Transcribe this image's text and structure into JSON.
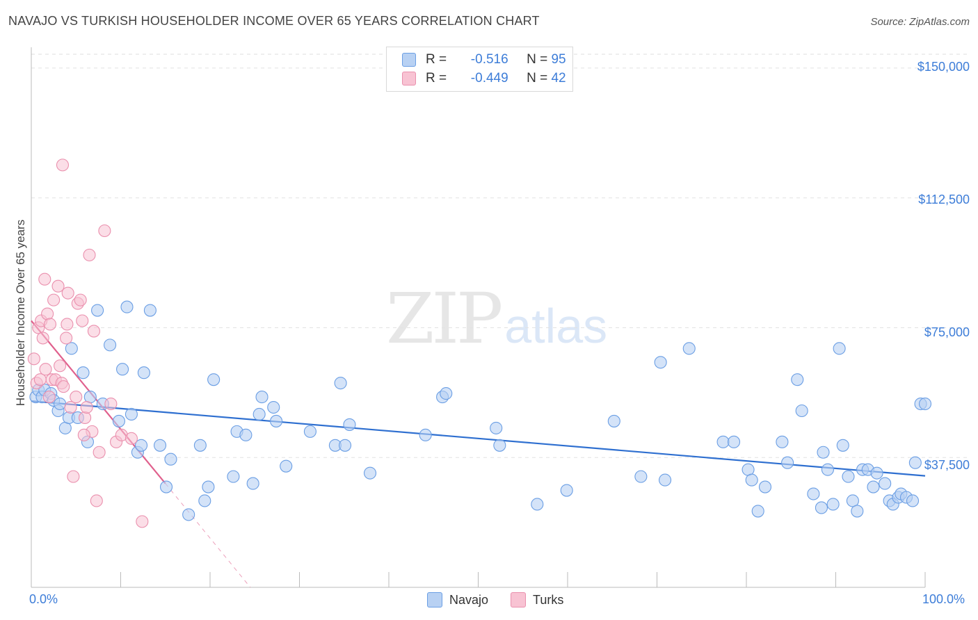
{
  "title": "NAVAJO VS TURKISH HOUSEHOLDER INCOME OVER 65 YEARS CORRELATION CHART",
  "source": "Source: ZipAtlas.com",
  "watermark": {
    "zip": "ZIP",
    "atlas": "atlas"
  },
  "legend": {
    "rows": [
      {
        "r_label": "R =",
        "r_value": "-0.516",
        "n_label": "N =",
        "n_value": "95",
        "color": "#b8d1f3"
      },
      {
        "r_label": "R =",
        "r_value": "-0.449",
        "n_label": "N =",
        "n_value": "42",
        "color": "#f8c3d3"
      }
    ]
  },
  "bottom_legend": {
    "navajo": "Navajo",
    "turks": "Turks"
  },
  "chart_data": {
    "type": "scatter",
    "title": "NAVAJO VS TURKISH HOUSEHOLDER INCOME OVER 65 YEARS CORRELATION CHART",
    "xlabel": "",
    "ylabel": "Householder Income Over 65 years",
    "x_tick_labels": [
      "0.0%",
      "100.0%"
    ],
    "y_tick_labels": [
      "$150,000",
      "$112,500",
      "$75,000",
      "$37,500"
    ],
    "y_ticks": [
      150000,
      112500,
      75000,
      37500
    ],
    "xlim": [
      0,
      100
    ],
    "ylim": [
      0,
      154000
    ],
    "grid": true,
    "colors": {
      "navajo_fill": "#b8d1f3",
      "navajo_stroke": "#6a9ee4",
      "navajo_line": "#2e6fd0",
      "turks_fill": "#f8c3d3",
      "turks_stroke": "#ea8fad",
      "turks_line": "#e0608d"
    },
    "series": [
      {
        "name": "Navajo",
        "points": [
          [
            0.5,
            55
          ],
          [
            0.8,
            57
          ],
          [
            1.2,
            55
          ],
          [
            1.5,
            57
          ],
          [
            2.2,
            56
          ],
          [
            2.5,
            54
          ],
          [
            3.0,
            51
          ],
          [
            3.2,
            53
          ],
          [
            3.8,
            46
          ],
          [
            4.2,
            49
          ],
          [
            4.5,
            69
          ],
          [
            5.2,
            49
          ],
          [
            5.8,
            62
          ],
          [
            6.3,
            42
          ],
          [
            6.6,
            55
          ],
          [
            7.4,
            80
          ],
          [
            8.0,
            53
          ],
          [
            8.8,
            70
          ],
          [
            9.8,
            48
          ],
          [
            10.2,
            63
          ],
          [
            10.7,
            81
          ],
          [
            11.2,
            50
          ],
          [
            11.9,
            39
          ],
          [
            12.3,
            41
          ],
          [
            12.6,
            62
          ],
          [
            13.3,
            80
          ],
          [
            14.4,
            41
          ],
          [
            15.1,
            29
          ],
          [
            15.6,
            37
          ],
          [
            17.6,
            21
          ],
          [
            18.9,
            41
          ],
          [
            19.4,
            25
          ],
          [
            19.8,
            29
          ],
          [
            20.4,
            60
          ],
          [
            22.6,
            32
          ],
          [
            23.0,
            45
          ],
          [
            24.0,
            44
          ],
          [
            24.8,
            30
          ],
          [
            25.5,
            50
          ],
          [
            25.8,
            55
          ],
          [
            27.1,
            52
          ],
          [
            27.4,
            48
          ],
          [
            28.5,
            35
          ],
          [
            31.2,
            45
          ],
          [
            34.0,
            41
          ],
          [
            34.6,
            59
          ],
          [
            35.1,
            41
          ],
          [
            35.6,
            47
          ],
          [
            37.9,
            33
          ],
          [
            44.1,
            44
          ],
          [
            46.0,
            55
          ],
          [
            46.4,
            56
          ],
          [
            52.0,
            46
          ],
          [
            52.4,
            41
          ],
          [
            56.6,
            24
          ],
          [
            59.9,
            28
          ],
          [
            65.2,
            48
          ],
          [
            68.2,
            32
          ],
          [
            70.4,
            65
          ],
          [
            70.9,
            31
          ],
          [
            73.6,
            69
          ],
          [
            77.4,
            42
          ],
          [
            78.6,
            42
          ],
          [
            80.2,
            34
          ],
          [
            80.6,
            31
          ],
          [
            81.3,
            22
          ],
          [
            82.1,
            29
          ],
          [
            84.0,
            42
          ],
          [
            84.6,
            36
          ],
          [
            85.7,
            60
          ],
          [
            86.2,
            51
          ],
          [
            87.5,
            27
          ],
          [
            88.4,
            23
          ],
          [
            88.6,
            39
          ],
          [
            89.1,
            34
          ],
          [
            89.7,
            24
          ],
          [
            90.4,
            69
          ],
          [
            90.8,
            41
          ],
          [
            91.4,
            32
          ],
          [
            91.9,
            25
          ],
          [
            92.4,
            22
          ],
          [
            93.0,
            34
          ],
          [
            93.6,
            34
          ],
          [
            94.2,
            29
          ],
          [
            94.6,
            33
          ],
          [
            95.5,
            30
          ],
          [
            96.0,
            25
          ],
          [
            96.4,
            24
          ],
          [
            97.0,
            26
          ],
          [
            97.3,
            27
          ],
          [
            97.9,
            26
          ],
          [
            98.6,
            25
          ],
          [
            98.9,
            36
          ],
          [
            99.5,
            53
          ],
          [
            100.0,
            53
          ]
        ]
      },
      {
        "name": "Turks",
        "points": [
          [
            0.3,
            66
          ],
          [
            0.6,
            59
          ],
          [
            0.8,
            75
          ],
          [
            1.1,
            77
          ],
          [
            1.3,
            72
          ],
          [
            1.5,
            89
          ],
          [
            1.8,
            79
          ],
          [
            2.1,
            76
          ],
          [
            2.3,
            60
          ],
          [
            2.5,
            83
          ],
          [
            2.7,
            60
          ],
          [
            3.0,
            87
          ],
          [
            3.2,
            64
          ],
          [
            3.4,
            59
          ],
          [
            3.6,
            58
          ],
          [
            3.9,
            72
          ],
          [
            4.1,
            85
          ],
          [
            4.4,
            52
          ],
          [
            4.7,
            32
          ],
          [
            5.0,
            55
          ],
          [
            5.2,
            82
          ],
          [
            5.5,
            83
          ],
          [
            5.7,
            77
          ],
          [
            6.0,
            49
          ],
          [
            6.2,
            52
          ],
          [
            6.5,
            96
          ],
          [
            6.8,
            45
          ],
          [
            7.0,
            74
          ],
          [
            7.3,
            25
          ],
          [
            7.6,
            39
          ],
          [
            8.2,
            103
          ],
          [
            8.9,
            53
          ],
          [
            9.5,
            42
          ],
          [
            10.1,
            44
          ],
          [
            11.2,
            43
          ],
          [
            12.4,
            19
          ],
          [
            1.0,
            60
          ],
          [
            2.0,
            55
          ],
          [
            3.5,
            122
          ],
          [
            5.9,
            44
          ],
          [
            4.0,
            76
          ],
          [
            1.6,
            63
          ]
        ]
      }
    ],
    "trend_lines": [
      {
        "series": "Navajo",
        "x": [
          0,
          100
        ],
        "y": [
          53800,
          32200
        ]
      },
      {
        "series": "Turks",
        "x": [
          0,
          15
        ],
        "y": [
          77000,
          30000
        ],
        "dashed_extension_to": [
          24.5,
          0
        ]
      }
    ]
  }
}
